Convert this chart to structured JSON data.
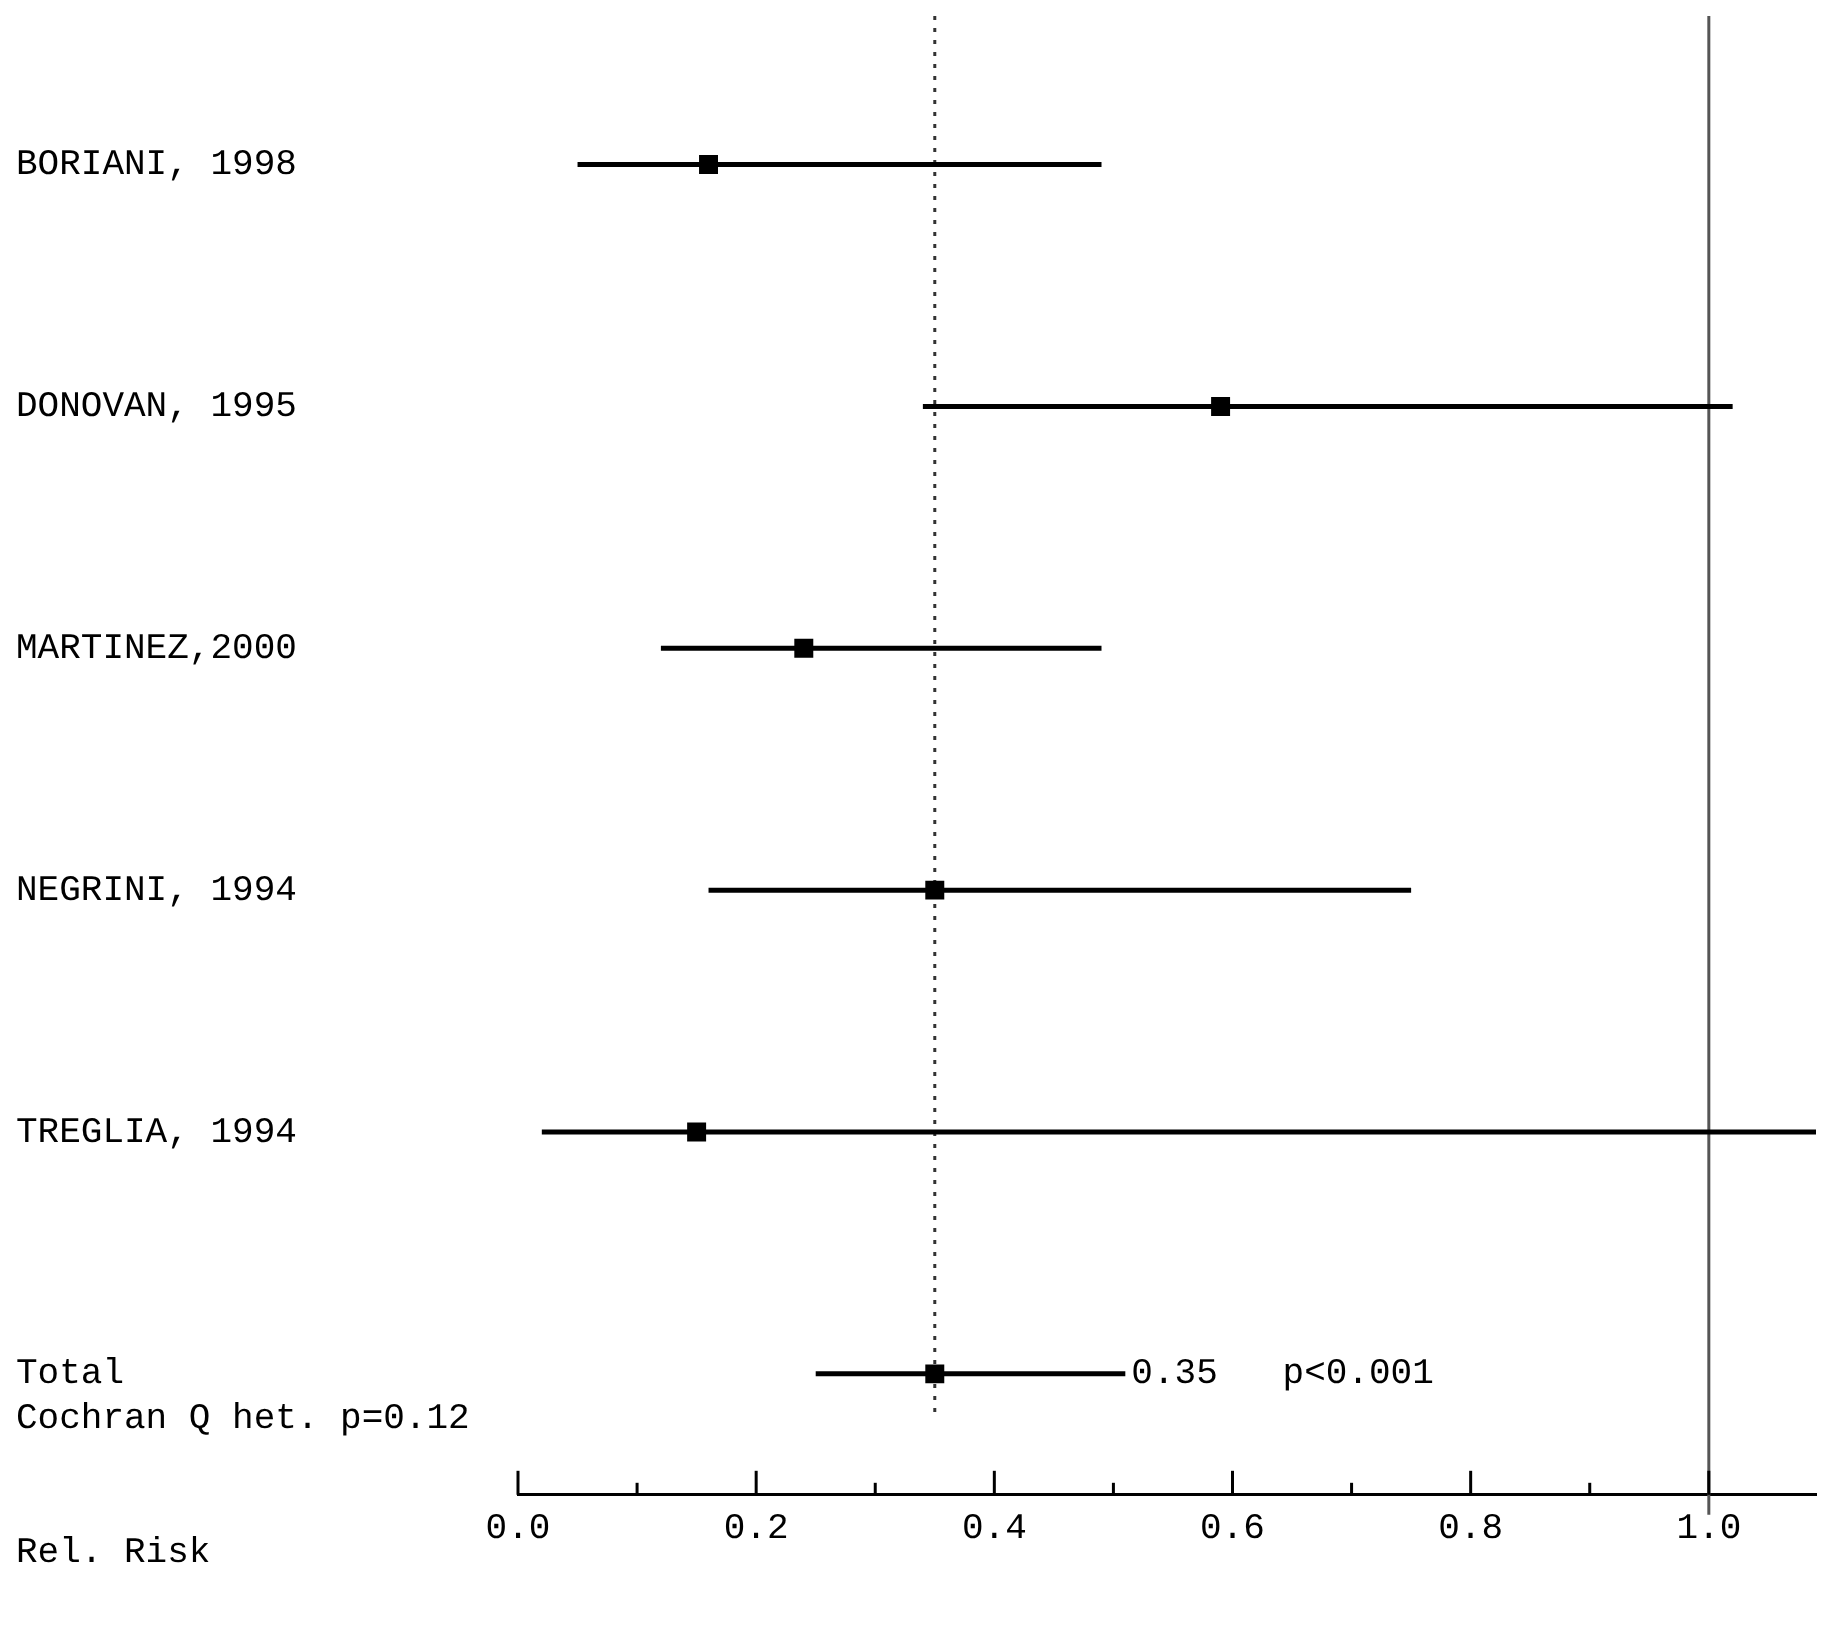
{
  "chart_data": {
    "type": "scatter",
    "orientation": "horizontal",
    "xlabel": "Rel. Risk",
    "categories": [
      "BORIANI, 1998",
      "DONOVAN, 1995",
      "MARTINEZ,2000",
      "NEGRINI, 1994",
      "TREGLIA, 1994",
      "Total"
    ],
    "values": [
      0.16,
      0.59,
      0.24,
      0.35,
      0.15,
      0.35
    ],
    "marker": "square",
    "errors": [
      [
        0.05,
        0.49
      ],
      [
        0.34,
        1.02
      ],
      [
        0.12,
        0.49
      ],
      [
        0.16,
        0.75
      ],
      [
        0.02,
        1.09
      ],
      [
        0.25,
        0.51
      ]
    ],
    "color": "#000000",
    "xlim": [
      0,
      1.09
    ],
    "xticks": [
      {
        "value": 0,
        "label": "0.0"
      },
      {
        "value": 0.1,
        "label": null
      },
      {
        "value": 0.2,
        "label": "0.2"
      },
      {
        "value": 0.3,
        "label": null
      },
      {
        "value": 0.4,
        "label": "0.4"
      },
      {
        "value": 0.5,
        "label": null
      },
      {
        "value": 0.6,
        "label": "0.6"
      },
      {
        "value": 0.7,
        "label": null
      },
      {
        "value": 0.8,
        "label": "0.8"
      },
      {
        "value": 0.9,
        "label": null
      },
      {
        "value": 1.0,
        "label": "1.0"
      }
    ],
    "ref_lines": [
      {
        "axis": "x",
        "value": 0.35,
        "line_style": "dotted",
        "color": "#333333"
      },
      {
        "axis": "x",
        "value": 1.0,
        "line_style": "solid",
        "color": "#555555"
      }
    ],
    "annotations": [
      "0.35   p<0.001",
      "Cochran Q het. p=0.12"
    ],
    "grid": false,
    "legend": false
  }
}
